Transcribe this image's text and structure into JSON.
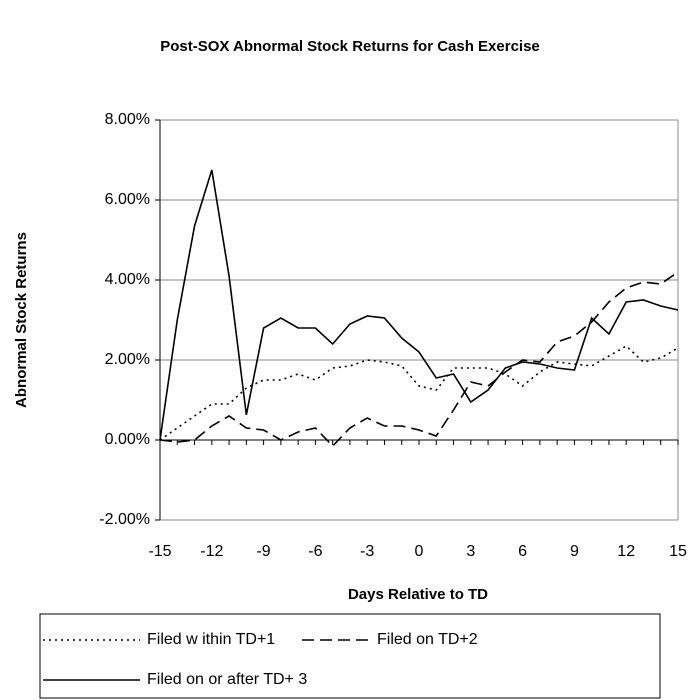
{
  "chart_data": {
    "type": "line",
    "title": "Post-SOX Abnormal Stock Returns for Cash Exercise",
    "x_label": "Days Relative to TD",
    "y_label": "Abnormal Stock Returns",
    "x": [
      -15,
      -14,
      -13,
      -12,
      -11,
      -10,
      -9,
      -8,
      -7,
      -6,
      -5,
      -4,
      -3,
      -2,
      -1,
      0,
      1,
      2,
      3,
      4,
      5,
      6,
      7,
      8,
      9,
      10,
      11,
      12,
      13,
      14,
      15
    ],
    "xlim": [
      -15,
      15
    ],
    "xticks": [
      -15,
      -12,
      -9,
      -6,
      -3,
      0,
      3,
      6,
      9,
      12,
      15
    ],
    "ylim": [
      -2,
      8
    ],
    "yticks": [
      {
        "value": -2,
        "label": "-2.00%"
      },
      {
        "value": 0,
        "label": "0.00%"
      },
      {
        "value": 2,
        "label": "2.00%"
      },
      {
        "value": 4,
        "label": "4.00%"
      },
      {
        "value": 6,
        "label": "6.00%"
      },
      {
        "value": 8,
        "label": "8.00%"
      }
    ],
    "grid": true,
    "legend": "bottom",
    "series": [
      {
        "name": "Filed w ithin TD+1",
        "color": "#000000",
        "dash": "dotted",
        "values": [
          0,
          0.3,
          0.6,
          0.9,
          0.9,
          1.3,
          1.5,
          1.5,
          1.65,
          1.5,
          1.8,
          1.85,
          2.0,
          1.95,
          1.85,
          1.35,
          1.25,
          1.8,
          1.8,
          1.8,
          1.65,
          1.35,
          1.7,
          1.95,
          1.9,
          1.85,
          2.1,
          2.35,
          1.95,
          2.05,
          2.3
        ]
      },
      {
        "name": "Filed on TD+2",
        "color": "#000000",
        "dash": "dashed",
        "values": [
          0,
          -0.05,
          0.0,
          0.35,
          0.6,
          0.3,
          0.25,
          0.0,
          0.2,
          0.3,
          -0.15,
          0.3,
          0.55,
          0.35,
          0.35,
          0.25,
          0.1,
          0.75,
          1.45,
          1.35,
          1.7,
          2.0,
          1.95,
          2.45,
          2.6,
          2.95,
          3.45,
          3.8,
          3.95,
          3.9,
          4.2
        ]
      },
      {
        "name": "Filed on or after TD+ 3",
        "color": "#000000",
        "dash": "solid",
        "values": [
          0,
          3.0,
          5.35,
          6.75,
          4.1,
          0.63,
          2.8,
          3.05,
          2.8,
          2.8,
          2.4,
          2.9,
          3.1,
          3.05,
          2.55,
          2.2,
          1.55,
          1.65,
          0.95,
          1.25,
          1.8,
          1.95,
          1.9,
          1.8,
          1.75,
          3.05,
          2.65,
          3.45,
          3.5,
          3.35,
          3.25
        ]
      }
    ]
  }
}
